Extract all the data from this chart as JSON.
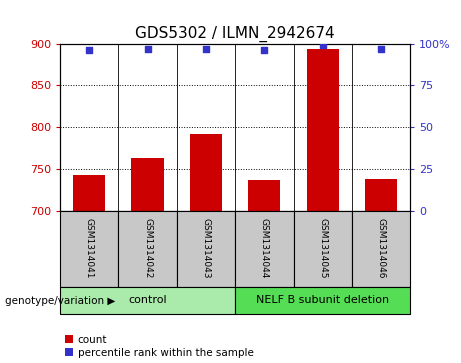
{
  "title": "GDS5302 / ILMN_2942674",
  "samples": [
    "GSM1314041",
    "GSM1314042",
    "GSM1314043",
    "GSM1314044",
    "GSM1314045",
    "GSM1314046"
  ],
  "counts": [
    743,
    763,
    792,
    736,
    893,
    738
  ],
  "percentile_ranks": [
    96,
    97,
    97,
    96,
    99,
    97
  ],
  "ylim_left": [
    700,
    900
  ],
  "yticks_left": [
    700,
    750,
    800,
    850,
    900
  ],
  "ylim_right": [
    0,
    100
  ],
  "yticks_right": [
    0,
    25,
    50,
    75,
    100
  ],
  "bar_color": "#cc0000",
  "dot_color": "#3333cc",
  "bar_width": 0.55,
  "groups": [
    {
      "label": "control",
      "samples": [
        0,
        1,
        2
      ],
      "color": "#aaeaaa"
    },
    {
      "label": "NELF B subunit deletion",
      "samples": [
        3,
        4,
        5
      ],
      "color": "#55dd55"
    }
  ],
  "group_label_prefix": "genotype/variation",
  "legend_items": [
    {
      "label": "count",
      "color": "#cc0000"
    },
    {
      "label": "percentile rank within the sample",
      "color": "#3333cc"
    }
  ],
  "grid_color": "black",
  "background_color": "#c8c8c8",
  "plot_bg_color": "#ffffff",
  "title_fontsize": 11,
  "tick_fontsize": 8,
  "sample_fontsize": 6.5,
  "group_fontsize": 8
}
